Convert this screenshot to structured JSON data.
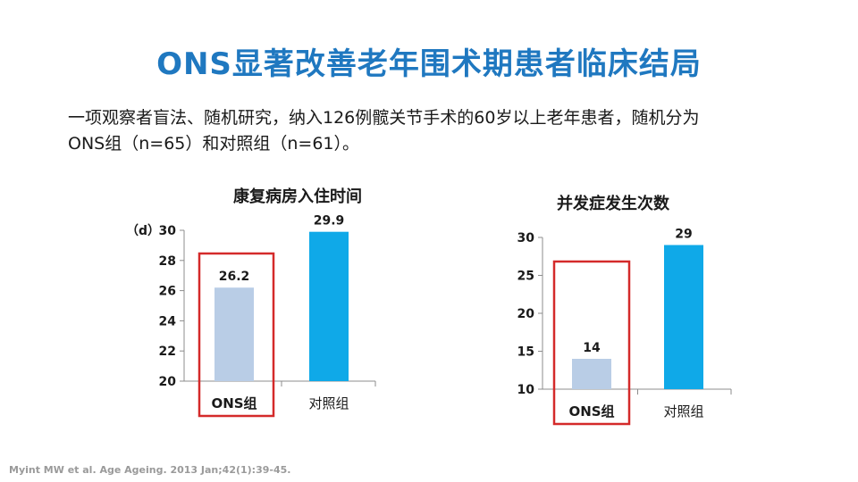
{
  "slide": {
    "title": "ONS显著改善老年围术期患者临床结局",
    "intro_line1": "一项观察者盲法、随机研究，纳入126例髋关节手术的60岁以上老年患者，随机分为",
    "intro_line2": "ONS组（n=65）和对照组（n=61）。",
    "citation": "Myint MW et al. Age Ageing. 2013 Jan;42(1):39-45."
  },
  "colors": {
    "title": "#1f78c0",
    "ons_bar": "#b9cde6",
    "control_bar": "#0fa9e8",
    "highlight_box": "#d42a2a",
    "axis": "#8c8c8c"
  },
  "chart_data": [
    {
      "type": "bar",
      "title": "康复病房入住时间",
      "unit": "（d）",
      "categories": [
        "ONS组",
        "对照组"
      ],
      "values": [
        26.2,
        29.9
      ],
      "value_labels": [
        "26.2",
        "29.9"
      ],
      "ylim": [
        20,
        30
      ],
      "yticks": [
        20,
        22,
        24,
        26,
        28,
        30
      ],
      "highlight_category": "ONS组",
      "grid": false
    },
    {
      "type": "bar",
      "title": "并发症发生次数",
      "unit": "",
      "categories": [
        "ONS组",
        "对照组"
      ],
      "values": [
        14,
        29
      ],
      "value_labels": [
        "14",
        "29"
      ],
      "ylim": [
        10,
        30
      ],
      "yticks": [
        10,
        15,
        20,
        25,
        30
      ],
      "highlight_category": "ONS组",
      "grid": false
    }
  ]
}
